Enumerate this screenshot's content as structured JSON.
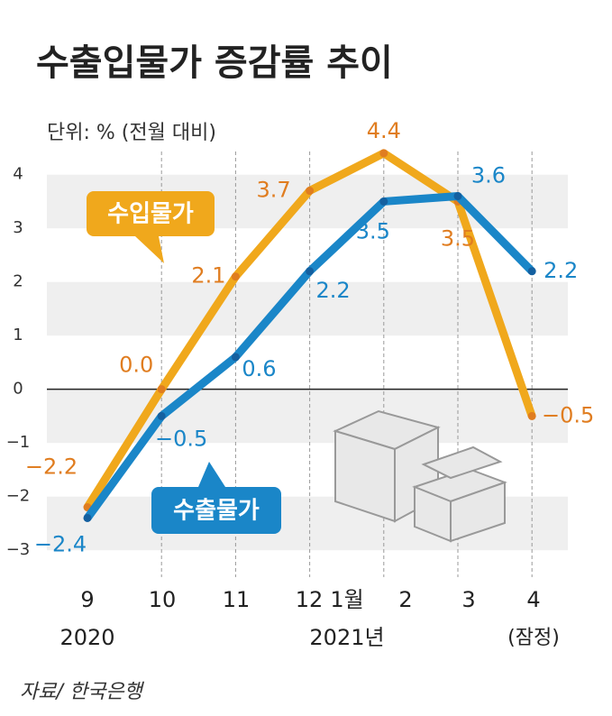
{
  "chart_data": {
    "type": "line",
    "title": "수출입물가 증감률 추이",
    "subtitle": "단위: % (전월 대비)",
    "source": "자료/ 한국은행",
    "categories": [
      "9",
      "10",
      "11",
      "12",
      "2",
      "3",
      "4"
    ],
    "annotations": [
      "1월",
      "2020",
      "2021년",
      "(잠정)"
    ],
    "series": [
      {
        "name": "수입물가",
        "color": "#f0a81c",
        "values": [
          -2.2,
          0.0,
          2.1,
          3.7,
          4.4,
          3.5,
          -0.5
        ],
        "value_labels": [
          "−2.2",
          "0.0",
          "2.1",
          "3.7",
          "4.4",
          "3.5",
          "−0.5"
        ]
      },
      {
        "name": "수출물가",
        "color": "#1a86c8",
        "values": [
          -2.4,
          -0.5,
          0.6,
          2.2,
          3.5,
          3.6,
          2.2
        ],
        "value_labels": [
          "−2.4",
          "−0.5",
          "0.6",
          "2.2",
          "3.5",
          "3.6",
          "2.2"
        ]
      }
    ],
    "ylim": [
      -3.3,
      4.6
    ],
    "yticks": [
      {
        "value": -3,
        "label": "−3"
      },
      {
        "value": -2,
        "label": "−2"
      },
      {
        "value": -1,
        "label": "−1"
      },
      0,
      1,
      2,
      3,
      4
    ],
    "grid": true
  }
}
